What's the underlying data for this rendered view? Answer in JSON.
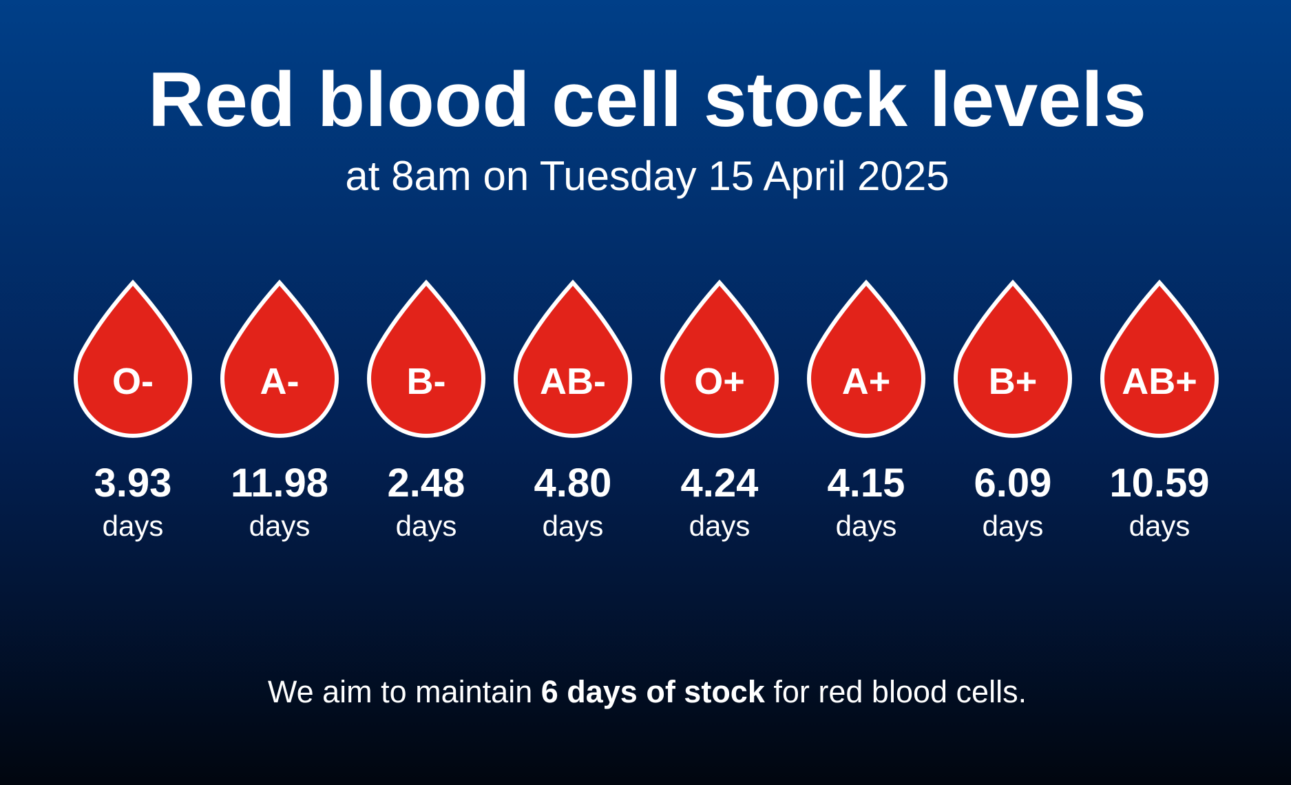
{
  "title": "Red blood cell stock levels",
  "subtitle": "at 8am on Tuesday 15 April 2025",
  "groups": [
    {
      "label": "O-",
      "value": "3.93",
      "unit": "days"
    },
    {
      "label": "A-",
      "value": "11.98",
      "unit": "days"
    },
    {
      "label": "B-",
      "value": "2.48",
      "unit": "days"
    },
    {
      "label": "AB-",
      "value": "4.80",
      "unit": "days"
    },
    {
      "label": "O+",
      "value": "4.24",
      "unit": "days"
    },
    {
      "label": "A+",
      "value": "4.15",
      "unit": "days"
    },
    {
      "label": "B+",
      "value": "6.09",
      "unit": "days"
    },
    {
      "label": "AB+",
      "value": "10.59",
      "unit": "days"
    }
  ],
  "footer": {
    "before": "We aim to maintain ",
    "bold": "6 days of stock",
    "after": " for red blood cells."
  }
}
